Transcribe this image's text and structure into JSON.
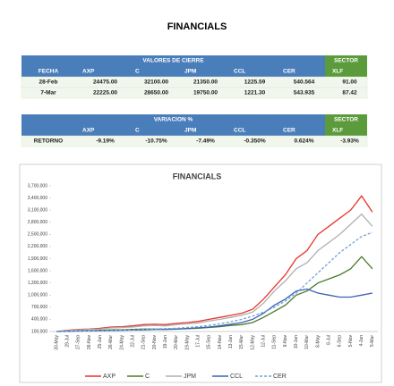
{
  "header": {
    "title": "FINANCIALS"
  },
  "table_values": {
    "title": "VALORES DE CIERRE",
    "sector": "SECTOR",
    "columns": [
      "FECHA",
      "AXP",
      "C",
      "JPM",
      "CCL",
      "CER",
      "XLF"
    ],
    "rows": [
      [
        "28-Feb",
        "24475.00",
        "32100.00",
        "21350.00",
        "1225.59",
        "540.564",
        "91.00"
      ],
      [
        "7-Mar",
        "22225.00",
        "28650.00",
        "19750.00",
        "1221.30",
        "543.935",
        "87.42"
      ]
    ]
  },
  "table_returns": {
    "title": "VARIACION %",
    "sector": "SECTOR",
    "columns": [
      null,
      "AXP",
      "C",
      "JPM",
      "CCL",
      "CER",
      "XLF"
    ],
    "rows": [
      [
        "RETORNO",
        "-9.19%",
        "-10.75%",
        "-7.49%",
        "-0.350%",
        "0.624%",
        "-3.93%"
      ]
    ]
  },
  "chart_data": {
    "type": "line",
    "title": "FINANCIALS",
    "categories": [
      "30-May",
      "29-Jul",
      "27-Sep",
      "26-Nov",
      "25-Jan",
      "26-Mar",
      "24-May",
      "22-Jul",
      "21-Sep",
      "20-Nov",
      "19-Jan",
      "20-Mar",
      "19-May",
      "17-Jul",
      "15-Sep",
      "14-Nov",
      "13-Jan",
      "15-Mar",
      "12-May",
      "12-Jul",
      "11-Sep",
      "9-Nov",
      "10-Jan",
      "10-Mar",
      "8-May",
      "8-Jul",
      "6-Sep",
      "5-Nov",
      "4-Jan",
      "5-Mar"
    ],
    "series": [
      {
        "name": "AXP",
        "color": "#e8342c",
        "values": [
          100000,
          130000,
          150000,
          160000,
          180000,
          210000,
          220000,
          240000,
          270000,
          280000,
          270000,
          300000,
          320000,
          350000,
          400000,
          450000,
          500000,
          550000,
          650000,
          900000,
          1200000,
          1500000,
          1900000,
          2100000,
          2500000,
          2700000,
          2900000,
          3100000,
          3450000,
          3050000
        ]
      },
      {
        "name": "C",
        "color": "#4a7a2a",
        "values": [
          100000,
          110000,
          120000,
          120000,
          130000,
          140000,
          140000,
          150000,
          160000,
          160000,
          150000,
          160000,
          170000,
          180000,
          200000,
          220000,
          250000,
          270000,
          320000,
          450000,
          600000,
          750000,
          1000000,
          1100000,
          1300000,
          1400000,
          1500000,
          1650000,
          1950000,
          1650000
        ]
      },
      {
        "name": "JPM",
        "color": "#b0b0b0",
        "values": [
          100000,
          120000,
          140000,
          150000,
          160000,
          190000,
          200000,
          210000,
          240000,
          250000,
          240000,
          270000,
          290000,
          310000,
          360000,
          400000,
          450000,
          500000,
          580000,
          800000,
          1100000,
          1350000,
          1650000,
          1800000,
          2100000,
          2300000,
          2500000,
          2750000,
          3000000,
          2700000
        ]
      },
      {
        "name": "CCL",
        "color": "#3a62b0",
        "values": [
          100000,
          105000,
          110000,
          115000,
          120000,
          125000,
          130000,
          135000,
          140000,
          150000,
          155000,
          165000,
          175000,
          190000,
          210000,
          240000,
          280000,
          320000,
          400000,
          550000,
          750000,
          900000,
          1100000,
          1150000,
          1050000,
          1000000,
          950000,
          950000,
          1000000,
          1050000
        ]
      },
      {
        "name": "CER",
        "color": "#6fa0d8",
        "dashed": true,
        "values": [
          100000,
          105000,
          110000,
          115000,
          120000,
          125000,
          130000,
          140000,
          150000,
          160000,
          170000,
          180000,
          200000,
          220000,
          250000,
          290000,
          340000,
          400000,
          480000,
          580000,
          700000,
          850000,
          1050000,
          1300000,
          1550000,
          1800000,
          2050000,
          2250000,
          2450000,
          2550000
        ]
      }
    ],
    "ylim": [
      100000,
      3700000
    ],
    "yticks": [
      {
        "value": 100000,
        "label": "100,000"
      },
      {
        "value": 400000,
        "label": "400,000"
      },
      {
        "value": 700000,
        "label": "700,000"
      },
      {
        "value": 1000000,
        "label": "1,000,000"
      },
      {
        "value": 1300000,
        "label": "1,300,000"
      },
      {
        "value": 1600000,
        "label": "1,600,000"
      },
      {
        "value": 1900000,
        "label": "1,900,000"
      },
      {
        "value": 2200000,
        "label": "2,200,000"
      },
      {
        "value": 2500000,
        "label": "2,500,000"
      },
      {
        "value": 2800000,
        "label": "2,800,000"
      },
      {
        "value": 3100000,
        "label": "3,100,000"
      },
      {
        "value": 3400000,
        "label": "3,400,000"
      },
      {
        "value": 3700000,
        "label": "3,700,000"
      }
    ]
  }
}
